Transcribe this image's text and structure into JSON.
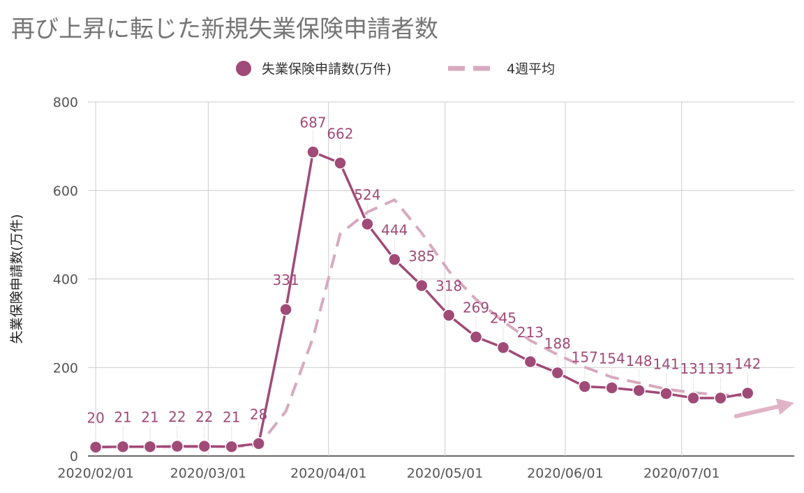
{
  "chart_data": {
    "type": "line",
    "title": "再び上昇に転じた新規失業保険申請者数",
    "ylabel": "失業保険申請数(万件)",
    "xlabel": "",
    "ylim": [
      0,
      800
    ],
    "yticks": [
      "0",
      "200",
      "400",
      "600",
      "800"
    ],
    "xtick_labels": [
      "2020/02/01",
      "2020/03/01",
      "2020/04/01",
      "2020/05/01",
      "2020/06/01",
      "2020/07/01"
    ],
    "xtick_dates": [
      "2020-02-01",
      "2020-03-01",
      "2020-04-01",
      "2020-05-01",
      "2020-06-01",
      "2020-07-01"
    ],
    "x_range": [
      "2020-01-30",
      "2020-07-30"
    ],
    "grid": true,
    "legend_position": "top",
    "x": [
      "2020-02-01",
      "2020-02-08",
      "2020-02-15",
      "2020-02-22",
      "2020-02-29",
      "2020-03-07",
      "2020-03-14",
      "2020-03-21",
      "2020-03-28",
      "2020-04-04",
      "2020-04-11",
      "2020-04-18",
      "2020-04-25",
      "2020-05-02",
      "2020-05-09",
      "2020-05-16",
      "2020-05-23",
      "2020-05-30",
      "2020-06-06",
      "2020-06-13",
      "2020-06-20",
      "2020-06-27",
      "2020-07-04",
      "2020-07-11",
      "2020-07-18"
    ],
    "series": [
      {
        "name": "失業保険申請数(万件)",
        "style": "line-markers",
        "color": "#a04a77",
        "values": [
          20,
          21,
          21,
          22,
          22,
          21,
          28,
          331,
          687,
          662,
          524,
          444,
          385,
          318,
          269,
          245,
          213,
          188,
          157,
          154,
          148,
          141,
          131,
          131,
          142
        ],
        "labels": [
          "20",
          "21",
          "21",
          "22",
          "22",
          "21",
          "28",
          "331",
          "687",
          "662",
          "524",
          "444",
          "385",
          "318",
          "269",
          "245",
          "213",
          "188",
          "157",
          "154",
          "148",
          "141",
          "131",
          "131",
          "142"
        ]
      },
      {
        "name": "4週平均",
        "style": "dashed",
        "color": "#d7a9bf",
        "values": [
          20,
          21,
          21,
          21,
          21,
          22,
          23,
          101,
          267,
          502,
          551,
          579,
          504,
          418,
          354,
          304,
          261,
          229,
          201,
          178,
          165,
          151,
          143,
          138,
          136
        ]
      }
    ],
    "annotation": {
      "type": "arrow",
      "color": "#e0b4c6",
      "from": [
        "2020-07-15",
        90
      ],
      "to": [
        "2020-07-30",
        120
      ]
    }
  }
}
